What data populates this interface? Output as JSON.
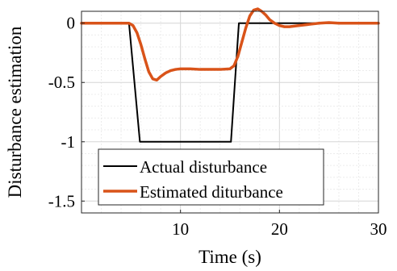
{
  "chart_data": {
    "type": "line",
    "xlabel": "Time (s)",
    "ylabel": "Disturbance estimation",
    "xlim": [
      0,
      30
    ],
    "ylim": [
      -1.6,
      0.1
    ],
    "grid": true,
    "legend_position": "bottom-left",
    "x_ticks": [
      10,
      20,
      30
    ],
    "x_tick_labels": [
      "10",
      "20",
      "30"
    ],
    "y_ticks": [
      0,
      -0.5,
      -1,
      -1.5
    ],
    "y_tick_labels": [
      "0",
      "-0.5",
      "-1",
      "-1.5"
    ],
    "series": [
      {
        "name": "Actual disturbance",
        "color": "#000000",
        "x": [
          0,
          4.8,
          5.9,
          15.1,
          15.9,
          16.2,
          30
        ],
        "y": [
          0,
          0,
          -1.0,
          -1.0,
          0,
          0,
          0
        ]
      },
      {
        "name": "Estimated diturbance",
        "color": "#D95319",
        "x": [
          0,
          4.8,
          5.2,
          5.6,
          6.0,
          6.4,
          6.8,
          7.2,
          7.6,
          8.0,
          8.5,
          9.0,
          9.5,
          10.0,
          11.0,
          12.0,
          13.0,
          14.0,
          15.0,
          15.4,
          15.8,
          16.2,
          16.6,
          17.0,
          17.4,
          17.8,
          18.2,
          18.6,
          19.0,
          19.5,
          20.0,
          20.5,
          21.0,
          22.0,
          23.0,
          24.0,
          25.0,
          26.0,
          28.0,
          30.0
        ],
        "y": [
          0,
          0,
          -0.02,
          -0.08,
          -0.18,
          -0.3,
          -0.41,
          -0.47,
          -0.48,
          -0.45,
          -0.42,
          -0.4,
          -0.39,
          -0.385,
          -0.385,
          -0.39,
          -0.39,
          -0.39,
          -0.385,
          -0.36,
          -0.28,
          -0.16,
          -0.04,
          0.06,
          0.11,
          0.12,
          0.1,
          0.07,
          0.03,
          0.0,
          -0.02,
          -0.03,
          -0.03,
          -0.02,
          -0.01,
          0.0,
          0.005,
          0.0,
          0,
          0
        ]
      }
    ]
  }
}
